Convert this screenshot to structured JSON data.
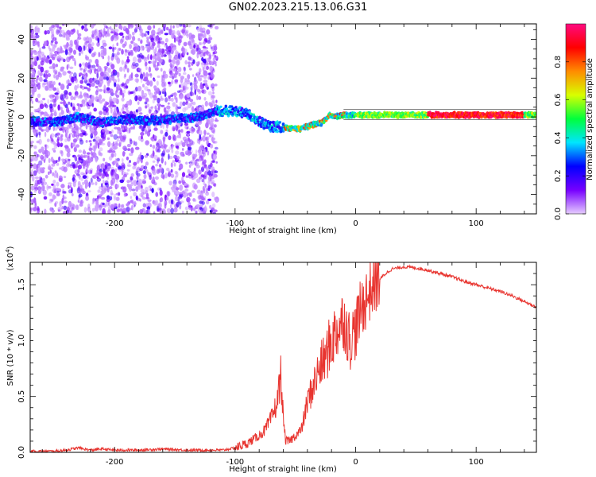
{
  "title": "GN02.2023.215.13.06.G31",
  "chart_data": [
    {
      "type": "heatmap",
      "xlabel": "Height of straight line (km)",
      "ylabel": "Frequency (Hz)",
      "xlim": [
        -270,
        150
      ],
      "ylim": [
        -50,
        48
      ],
      "xticks": [
        -200,
        -100,
        0,
        100
      ],
      "yticks": [
        -40,
        -20,
        0,
        20,
        40
      ],
      "grid": false,
      "colorbar": {
        "label": "Normalized spectral amplitude",
        "range": [
          0,
          1
        ],
        "ticks": [
          "0.0",
          "0.2",
          "0.4",
          "0.6",
          "0.8"
        ],
        "colors": [
          "#e6ccff",
          "#7700ff",
          "#0000ff",
          "#00e5ff",
          "#00ff3c",
          "#d8ff00",
          "#ff8c00",
          "#ff0000",
          "#ff0a80"
        ]
      },
      "center_line": [
        [
          -270,
          -2
        ],
        [
          -250,
          -3
        ],
        [
          -230,
          0
        ],
        [
          -210,
          -3
        ],
        [
          -190,
          -1
        ],
        [
          -170,
          -2
        ],
        [
          -150,
          -1
        ],
        [
          -130,
          0
        ],
        [
          -115,
          3
        ],
        [
          -100,
          3
        ],
        [
          -90,
          2
        ],
        [
          -80,
          -2
        ],
        [
          -72,
          -5
        ],
        [
          -65,
          -5
        ],
        [
          -55,
          -6
        ],
        [
          -45,
          -6
        ],
        [
          -35,
          -4
        ],
        [
          -28,
          -3
        ],
        [
          -22,
          1
        ],
        [
          -18,
          0
        ],
        [
          -10,
          1
        ],
        [
          0,
          1
        ],
        [
          20,
          1
        ],
        [
          60,
          1
        ],
        [
          100,
          1
        ],
        [
          150,
          1
        ]
      ]
    },
    {
      "type": "line",
      "xlabel": "Height of straight line (km)",
      "ylabel": "SNR (10 * v/v)",
      "multiplier": "(x10",
      "multiplier_exp": "4",
      "xlim": [
        -270,
        150
      ],
      "ylim": [
        0,
        1.7
      ],
      "xticks": [
        -200,
        -100,
        0,
        100
      ],
      "yticks": [
        "0.0",
        "0.5",
        "1.0",
        "1.5"
      ],
      "color": "#e8342f",
      "series": [
        {
          "x": [
            -270,
            -250,
            -240,
            -230,
            -220,
            -210,
            -200,
            -180,
            -160,
            -140,
            -120,
            -110,
            -100,
            -90,
            -80,
            -75,
            -70,
            -65,
            -62,
            -60,
            -58,
            -55,
            -50,
            -45,
            -40,
            -35,
            -30,
            -25,
            -20,
            -15,
            -10,
            -5,
            0,
            5,
            10,
            15,
            20,
            25,
            30,
            35,
            40,
            50,
            60,
            70,
            80,
            90,
            100,
            110,
            120,
            130,
            140,
            150
          ],
          "y": [
            0.01,
            0.01,
            0.02,
            0.04,
            0.02,
            0.03,
            0.02,
            0.02,
            0.03,
            0.02,
            0.02,
            0.02,
            0.04,
            0.08,
            0.15,
            0.2,
            0.3,
            0.45,
            0.7,
            0.3,
            0.1,
            0.1,
            0.15,
            0.2,
            0.45,
            0.6,
            0.75,
            0.85,
            1.0,
            1.1,
            1.2,
            1.0,
            1.1,
            1.3,
            1.4,
            1.5,
            1.55,
            1.6,
            1.64,
            1.65,
            1.66,
            1.65,
            1.63,
            1.6,
            1.57,
            1.53,
            1.5,
            1.47,
            1.44,
            1.4,
            1.35,
            1.3
          ]
        }
      ]
    }
  ]
}
